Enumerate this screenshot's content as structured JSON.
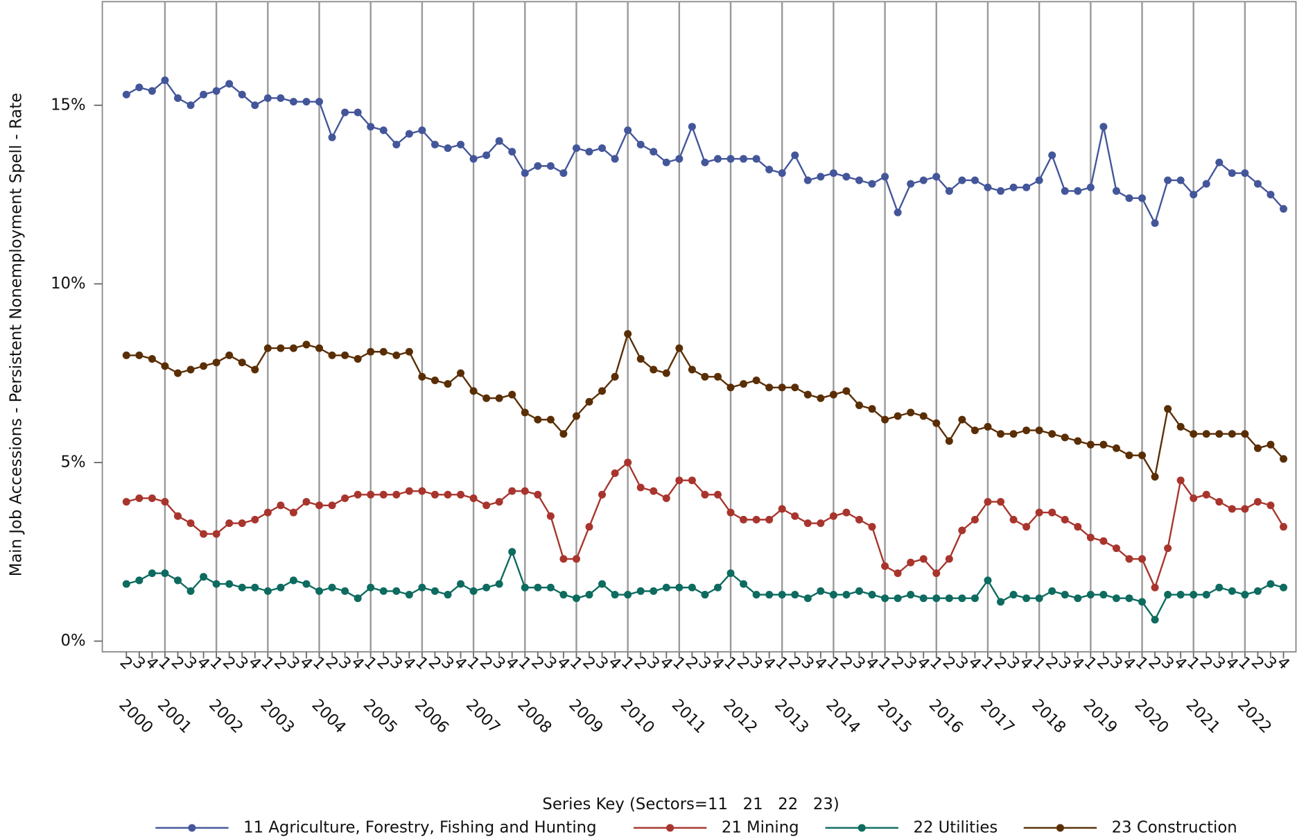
{
  "chart_data": {
    "type": "line",
    "y_label": "Main Job Accessions - Persistent Nonemployment Spell - Rate",
    "legend_title": "Series Key (Sectors=11   21   22   23)",
    "categories": [
      "2",
      "3",
      "4",
      "1",
      "2",
      "3",
      "4",
      "1",
      "2",
      "3",
      "4",
      "1",
      "2",
      "3",
      "4",
      "1",
      "2",
      "3",
      "4",
      "1",
      "2",
      "3",
      "4",
      "1",
      "2",
      "3",
      "4",
      "1",
      "2",
      "3",
      "4",
      "1",
      "2",
      "3",
      "4",
      "1",
      "2",
      "3",
      "4",
      "1",
      "2",
      "3",
      "4",
      "1",
      "2",
      "3",
      "4",
      "1",
      "2",
      "3",
      "4",
      "1",
      "2",
      "3",
      "4",
      "1",
      "2",
      "3",
      "4",
      "1",
      "2",
      "3",
      "4",
      "1",
      "2",
      "3",
      "4",
      "1",
      "2",
      "3",
      "4",
      "1",
      "2",
      "3",
      "4",
      "1",
      "2",
      "3",
      "4",
      "1",
      "2",
      "3",
      "4",
      "1",
      "2",
      "3",
      "4",
      "1",
      "2",
      "3",
      "4"
    ],
    "years": [
      "2000",
      "2001",
      "2002",
      "2003",
      "2004",
      "2005",
      "2006",
      "2007",
      "2008",
      "2009",
      "2010",
      "2011",
      "2012",
      "2013",
      "2014",
      "2015",
      "2016",
      "2017",
      "2018",
      "2019",
      "2020",
      "2021",
      "2022"
    ],
    "ylim": [
      -0.3,
      17.9
    ],
    "yticks": [
      {
        "value": 0,
        "label": "0%"
      },
      {
        "value": 5,
        "label": "5%"
      },
      {
        "value": 10,
        "label": "10%"
      },
      {
        "value": 15,
        "label": "15%"
      }
    ],
    "year_grid": true,
    "series": [
      {
        "name": "11 Agriculture, Forestry, Fishing and Hunting",
        "color": "#44569a",
        "values": [
          15.3,
          15.5,
          15.4,
          15.7,
          15.2,
          15.0,
          15.3,
          15.4,
          15.6,
          15.3,
          15.0,
          15.2,
          15.2,
          15.1,
          15.1,
          15.1,
          14.1,
          14.8,
          14.8,
          14.4,
          14.3,
          13.9,
          14.2,
          14.3,
          13.9,
          13.8,
          13.9,
          13.5,
          13.6,
          14.0,
          13.7,
          13.1,
          13.3,
          13.3,
          13.1,
          13.8,
          13.7,
          13.8,
          13.5,
          14.3,
          13.9,
          13.7,
          13.4,
          13.5,
          14.4,
          13.4,
          13.5,
          13.5,
          13.5,
          13.5,
          13.2,
          13.1,
          13.6,
          12.9,
          13.0,
          13.1,
          13.0,
          12.9,
          12.8,
          13.0,
          12.0,
          12.8,
          12.9,
          13.0,
          12.6,
          12.9,
          12.9,
          12.7,
          12.6,
          12.7,
          12.7,
          12.9,
          13.6,
          12.6,
          12.6,
          12.7,
          14.4,
          12.6,
          12.4,
          12.4,
          11.7,
          12.9,
          12.9,
          12.5,
          12.8,
          13.4,
          13.1,
          13.1,
          12.8,
          12.5,
          12.1
        ]
      },
      {
        "name": "21 Mining",
        "color": "#a8352d",
        "values": [
          3.9,
          4.0,
          4.0,
          3.9,
          3.5,
          3.3,
          3.0,
          3.0,
          3.3,
          3.3,
          3.4,
          3.6,
          3.8,
          3.6,
          3.9,
          3.8,
          3.8,
          4.0,
          4.1,
          4.1,
          4.1,
          4.1,
          4.2,
          4.2,
          4.1,
          4.1,
          4.1,
          4.0,
          3.8,
          3.9,
          4.2,
          4.2,
          4.1,
          3.5,
          2.3,
          2.3,
          3.2,
          4.1,
          4.7,
          5.0,
          4.3,
          4.2,
          4.0,
          4.5,
          4.5,
          4.1,
          4.1,
          3.6,
          3.4,
          3.4,
          3.4,
          3.7,
          3.5,
          3.3,
          3.3,
          3.5,
          3.6,
          3.4,
          3.2,
          2.1,
          1.9,
          2.2,
          2.3,
          1.9,
          2.3,
          3.1,
          3.4,
          3.9,
          3.9,
          3.4,
          3.2,
          3.6,
          3.6,
          3.4,
          3.2,
          2.9,
          2.8,
          2.6,
          2.3,
          2.3,
          1.5,
          2.6,
          4.5,
          4.0,
          4.1,
          3.9,
          3.7,
          3.7,
          3.9,
          3.8,
          3.2
        ]
      },
      {
        "name": "22 Utilities",
        "color": "#0d6b5f",
        "values": [
          1.6,
          1.7,
          1.9,
          1.9,
          1.7,
          1.4,
          1.8,
          1.6,
          1.6,
          1.5,
          1.5,
          1.4,
          1.5,
          1.7,
          1.6,
          1.4,
          1.5,
          1.4,
          1.2,
          1.5,
          1.4,
          1.4,
          1.3,
          1.5,
          1.4,
          1.3,
          1.6,
          1.4,
          1.5,
          1.6,
          2.5,
          1.5,
          1.5,
          1.5,
          1.3,
          1.2,
          1.3,
          1.6,
          1.3,
          1.3,
          1.4,
          1.4,
          1.5,
          1.5,
          1.5,
          1.3,
          1.5,
          1.9,
          1.6,
          1.3,
          1.3,
          1.3,
          1.3,
          1.2,
          1.4,
          1.3,
          1.3,
          1.4,
          1.3,
          1.2,
          1.2,
          1.3,
          1.2,
          1.2,
          1.2,
          1.2,
          1.2,
          1.7,
          1.1,
          1.3,
          1.2,
          1.2,
          1.4,
          1.3,
          1.2,
          1.3,
          1.3,
          1.2,
          1.2,
          1.1,
          0.6,
          1.3,
          1.3,
          1.3,
          1.3,
          1.5,
          1.4,
          1.3,
          1.4,
          1.6,
          1.5
        ]
      },
      {
        "name": "23 Construction",
        "color": "#5a2e05",
        "values": [
          8.0,
          8.0,
          7.9,
          7.7,
          7.5,
          7.6,
          7.7,
          7.8,
          8.0,
          7.8,
          7.6,
          8.2,
          8.2,
          8.2,
          8.3,
          8.2,
          8.0,
          8.0,
          7.9,
          8.1,
          8.1,
          8.0,
          8.1,
          7.4,
          7.3,
          7.2,
          7.5,
          7.0,
          6.8,
          6.8,
          6.9,
          6.4,
          6.2,
          6.2,
          5.8,
          6.3,
          6.7,
          7.0,
          7.4,
          8.6,
          7.9,
          7.6,
          7.5,
          8.2,
          7.6,
          7.4,
          7.4,
          7.1,
          7.2,
          7.3,
          7.1,
          7.1,
          7.1,
          6.9,
          6.8,
          6.9,
          7.0,
          6.6,
          6.5,
          6.2,
          6.3,
          6.4,
          6.3,
          6.1,
          5.6,
          6.2,
          5.9,
          6.0,
          5.8,
          5.8,
          5.9,
          5.9,
          5.8,
          5.7,
          5.6,
          5.5,
          5.5,
          5.4,
          5.2,
          5.2,
          4.6,
          6.5,
          6.0,
          5.8,
          5.8,
          5.8,
          5.8,
          5.8,
          5.4,
          5.5,
          5.1
        ]
      }
    ]
  }
}
